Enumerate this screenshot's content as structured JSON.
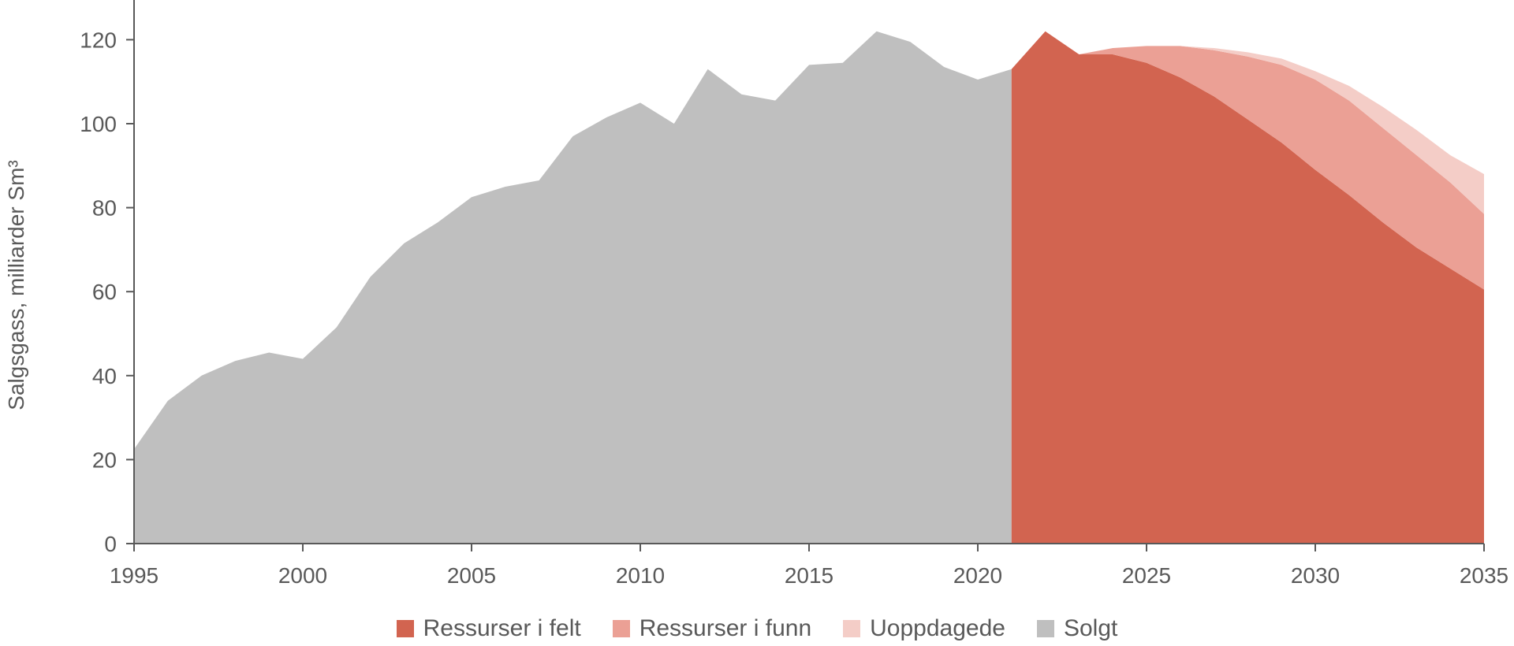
{
  "chart_data": {
    "type": "area",
    "ylabel": "Salgsgass, milliarder Sm³",
    "xlim": [
      1995,
      2035
    ],
    "ylim": [
      0,
      130
    ],
    "x_ticks": [
      "1995",
      "2000",
      "2005",
      "2010",
      "2015",
      "2020",
      "2025",
      "2030",
      "2035"
    ],
    "y_ticks": [
      "0",
      "20",
      "40",
      "60",
      "80",
      "100",
      "120"
    ],
    "grid": false,
    "legend_position": "bottom",
    "series": [
      {
        "name": "Solgt",
        "color": "#bfbfbf",
        "x": [
          1995,
          1996,
          1997,
          1998,
          1999,
          2000,
          2001,
          2002,
          2003,
          2004,
          2005,
          2006,
          2007,
          2008,
          2009,
          2010,
          2011,
          2012,
          2013,
          2014,
          2015,
          2016,
          2017,
          2018,
          2019,
          2020,
          2021
        ],
        "values": [
          22.5,
          34,
          40,
          43.5,
          45.5,
          44,
          51.5,
          63.5,
          71.5,
          76.5,
          82.5,
          85,
          86.5,
          97,
          101.5,
          105,
          100,
          113,
          107,
          105.5,
          114,
          114.5,
          122,
          119.5,
          113.5,
          110.5,
          113
        ]
      },
      {
        "name": "Ressurser i felt",
        "color": "#d26450",
        "x": [
          2021,
          2022,
          2023,
          2024,
          2025,
          2026,
          2027,
          2028,
          2029,
          2030,
          2031,
          2032,
          2033,
          2034,
          2035
        ],
        "values": [
          113,
          122,
          116.5,
          116.5,
          114.5,
          111,
          106.5,
          101,
          95.5,
          89,
          83,
          76.5,
          70.5,
          65.5,
          60.5
        ]
      },
      {
        "name": "Ressurser i funn",
        "color": "#eba095",
        "x": [
          2021,
          2022,
          2023,
          2024,
          2025,
          2026,
          2027,
          2028,
          2029,
          2030,
          2031,
          2032,
          2033,
          2034,
          2035
        ],
        "values": [
          0,
          0,
          0,
          1.5,
          4,
          7.5,
          11,
          15,
          18.5,
          21.5,
          22.5,
          22.5,
          22,
          20.5,
          18
        ]
      },
      {
        "name": "Uoppdagede",
        "color": "#f4cdc7",
        "x": [
          2021,
          2022,
          2023,
          2024,
          2025,
          2026,
          2027,
          2028,
          2029,
          2030,
          2031,
          2032,
          2033,
          2034,
          2035
        ],
        "values": [
          0,
          0,
          0,
          0,
          0,
          0,
          0.5,
          1,
          1.5,
          2,
          3.5,
          5,
          6,
          6.5,
          9.5
        ]
      }
    ],
    "legend": [
      "Ressurser i felt",
      "Ressurser i funn",
      "Uoppdagede",
      "Solgt"
    ]
  }
}
